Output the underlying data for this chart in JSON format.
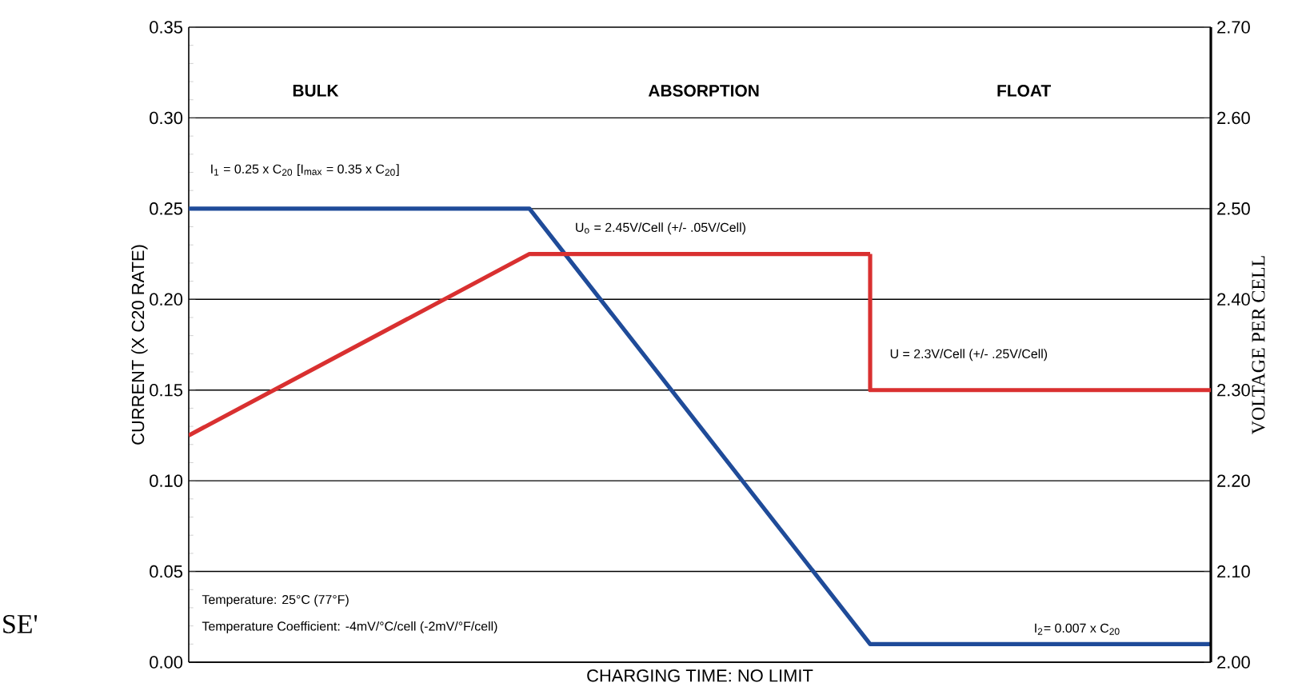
{
  "chart_data": {
    "type": "line",
    "xlabel": "CHARGING TIME: NO LIMIT",
    "ylabel": "CURRENT (X C20 RATE)",
    "y2label": "VOLTAGE PER CELL",
    "categories": [
      null,
      null,
      null,
      null
    ],
    "ylim": [
      0,
      0.35
    ],
    "y2lim": [
      2.0,
      2.7
    ],
    "tick_labels": "y",
    "grid": "y",
    "yticks": [
      {
        "value": 0,
        "label": "0.00"
      },
      {
        "value": 0.05,
        "label": "0.05"
      },
      {
        "value": 0.1,
        "label": "0.10"
      },
      {
        "value": 0.15,
        "label": "0.15"
      },
      {
        "value": 0.2,
        "label": "0.20"
      },
      {
        "value": 0.25,
        "label": "0.25"
      },
      {
        "value": 0.3,
        "label": "0.30"
      },
      {
        "value": 0.35,
        "label": "0.35"
      }
    ],
    "y2ticks": [
      {
        "value": 2.0,
        "label": "2.00"
      },
      {
        "value": 2.1,
        "label": "2.10"
      },
      {
        "value": 2.2,
        "label": "2.20"
      },
      {
        "value": 2.3,
        "label": "2.30"
      },
      {
        "value": 2.4,
        "label": "2.40"
      },
      {
        "value": 2.5,
        "label": "2.50"
      },
      {
        "value": 2.6,
        "label": "2.60"
      },
      {
        "value": 2.7,
        "label": "2.70"
      }
    ],
    "series": [
      {
        "color": "#1f4b99",
        "values": [
          0.25,
          0.25,
          0.01,
          0.01
        ]
      },
      {
        "color": "#d93030",
        "axis": "y2",
        "values": [
          2.25,
          2.45,
          2.45,
          null
        ]
      },
      {
        "color": "#d93030",
        "axis": "y2",
        "type": "step",
        "values": [
          null,
          null,
          2.45,
          2.3
        ]
      }
    ],
    "annotations": [
      "BULK",
      "ABSORPTION",
      "FLOAT",
      "I$_{1}$ = 0.25 x C$_{20}$ [I$_{max}$ = 0.35 x C$_{20}$]",
      "U$_{o}$ = 2.45V/Cell (+/- .05V/Cell)",
      "U = 2.3V/Cell (+/- .25V/Cell)",
      "I$_{2}$= 0.007 x C$_{20}$",
      "Temperature: 25°C (77°F)",
      "Temperature Coefficient: -4mV/°C/cell (-2mV/°F/cell)",
      "SE'"
    ]
  }
}
